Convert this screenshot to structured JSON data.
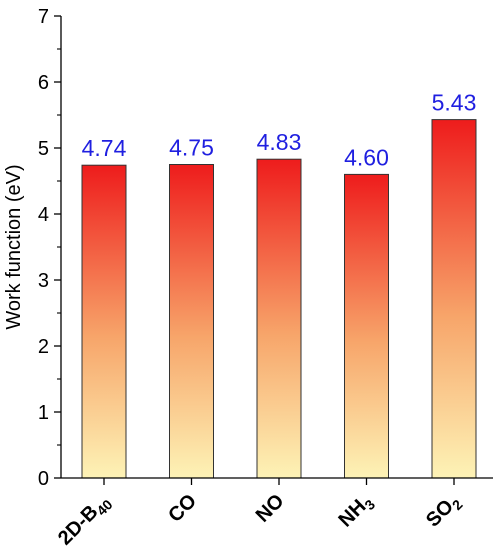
{
  "chart_data": {
    "type": "bar",
    "categories": [
      {
        "main": "2D-B",
        "sub": "40",
        "tail": ""
      },
      {
        "main": "CO",
        "sub": "",
        "tail": ""
      },
      {
        "main": "NO",
        "sub": "",
        "tail": ""
      },
      {
        "main": "NH",
        "sub": "3",
        "tail": ""
      },
      {
        "main": "SO",
        "sub": "2",
        "tail": ""
      }
    ],
    "values": [
      4.74,
      4.75,
      4.83,
      4.6,
      5.43
    ],
    "data_labels": [
      "4.74",
      "4.75",
      "4.83",
      "4.60",
      "5.43"
    ],
    "title": "",
    "xlabel": "",
    "ylabel": "Work function (eV)",
    "ylim": [
      0,
      7
    ],
    "yticks": [
      "0",
      "1",
      "2",
      "3",
      "4",
      "5",
      "6",
      "7"
    ],
    "grid": false,
    "legend": "none",
    "colors": {
      "bar_top": "#ee1c1c",
      "bar_bottom": "#fdf3b6",
      "bar_edge": "#333333",
      "data_label": "#1f1fe0",
      "axis": "#000000"
    }
  }
}
